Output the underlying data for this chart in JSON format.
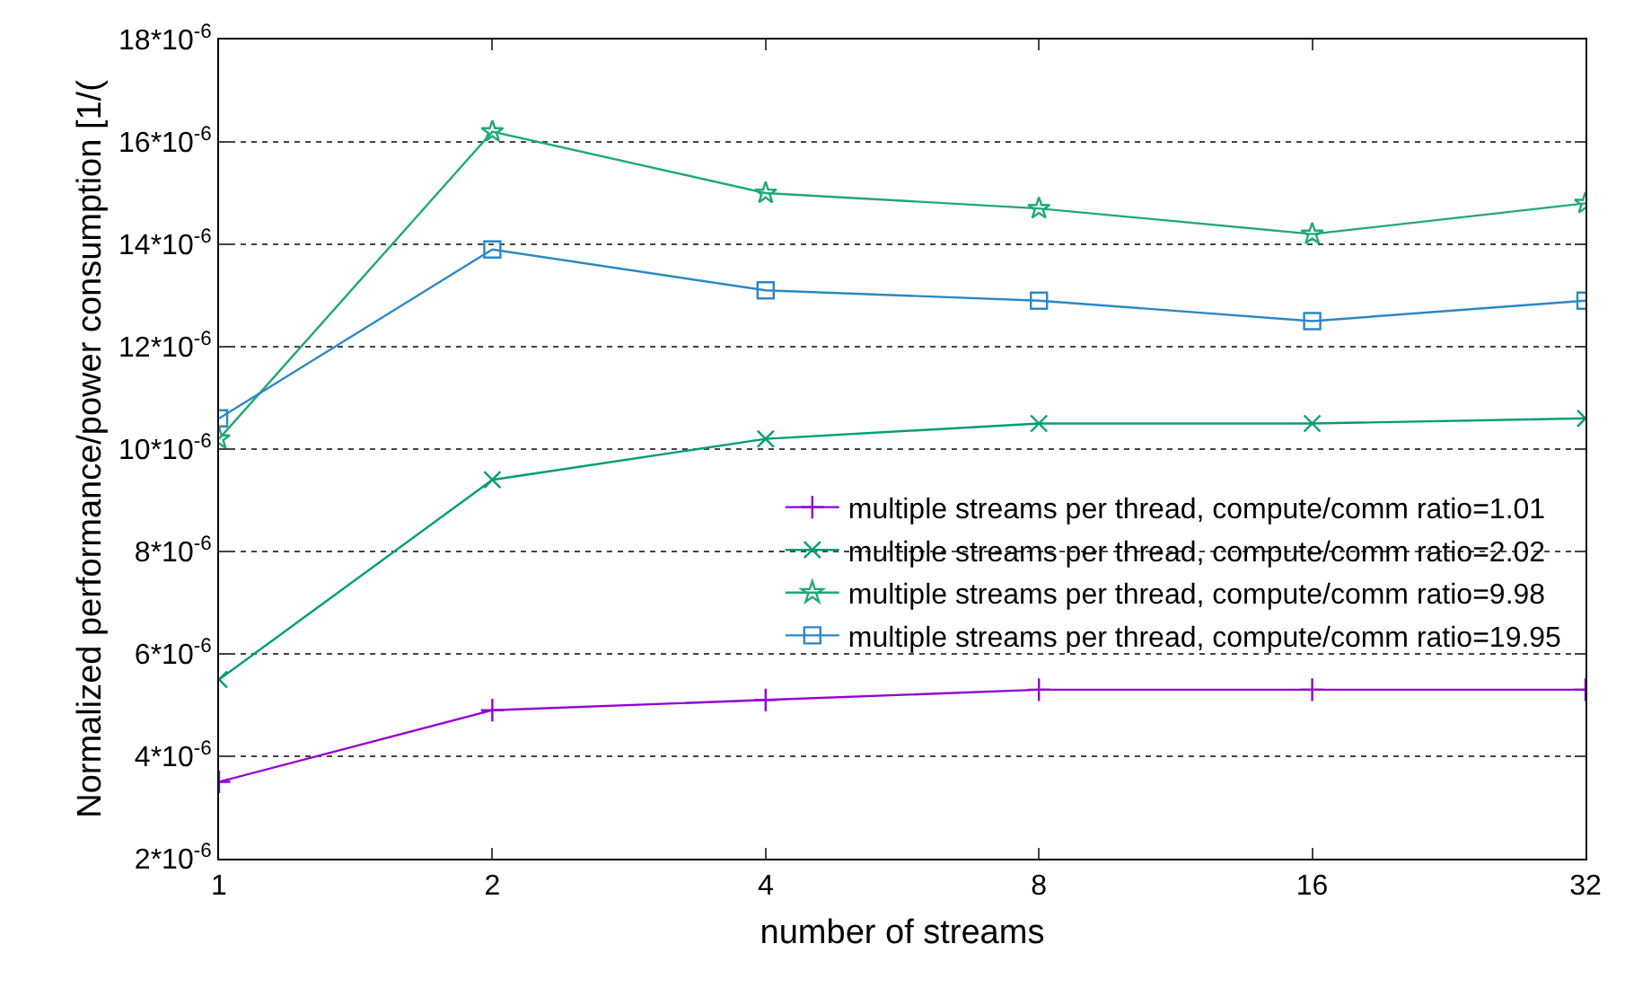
{
  "chart_data": {
    "type": "line",
    "xlabel": "number of streams",
    "ylabel": "Normalized performance/power consumption [1/(",
    "categories": [
      "1",
      "2",
      "4",
      "8",
      "16",
      "32"
    ],
    "series": [
      {
        "name": "multiple streams per thread, compute/comm ratio=1.01",
        "color": "#9400d3",
        "marker": "cross",
        "values": [
          3.5e-06,
          4.9e-06,
          5.1e-06,
          5.3e-06,
          5.3e-06,
          5.3e-06
        ]
      },
      {
        "name": "multiple streams per thread, compute/comm ratio=2.02",
        "color": "#009e73",
        "marker": "x",
        "values": [
          5.5e-06,
          9.4e-06,
          1.02e-05,
          1.05e-05,
          1.05e-05,
          1.06e-05
        ]
      },
      {
        "name": "multiple streams per thread, compute/comm ratio=9.98",
        "color": "#20a87a",
        "marker": "star",
        "values": [
          1.02e-05,
          1.62e-05,
          1.5e-05,
          1.47e-05,
          1.42e-05,
          1.48e-05
        ]
      },
      {
        "name": "multiple streams per thread, compute/comm ratio=19.95",
        "color": "#2b88c4",
        "marker": "square",
        "values": [
          1.06e-05,
          1.39e-05,
          1.31e-05,
          1.29e-05,
          1.25e-05,
          1.29e-05
        ]
      }
    ],
    "ylim": [
      2e-06,
      1.8e-05
    ],
    "yticks": [
      {
        "value": 2e-06,
        "label": "2*10$^{-6}$"
      },
      {
        "value": 4e-06,
        "label": "4*10$^{-6}$"
      },
      {
        "value": 6e-06,
        "label": "6*10$^{-6}$"
      },
      {
        "value": 8e-06,
        "label": "8*10$^{-6}$"
      },
      {
        "value": 1e-05,
        "label": "10*10$^{-6}$"
      },
      {
        "value": 1.2e-05,
        "label": "12*10$^{-6}$"
      },
      {
        "value": 1.4e-05,
        "label": "14*10$^{-6}$"
      },
      {
        "value": 1.6e-05,
        "label": "16*10$^{-6}$"
      },
      {
        "value": 1.8e-05,
        "label": "18*10$^{-6}$"
      }
    ],
    "grid": "y",
    "legend": "right",
    "line_style": "solid"
  }
}
